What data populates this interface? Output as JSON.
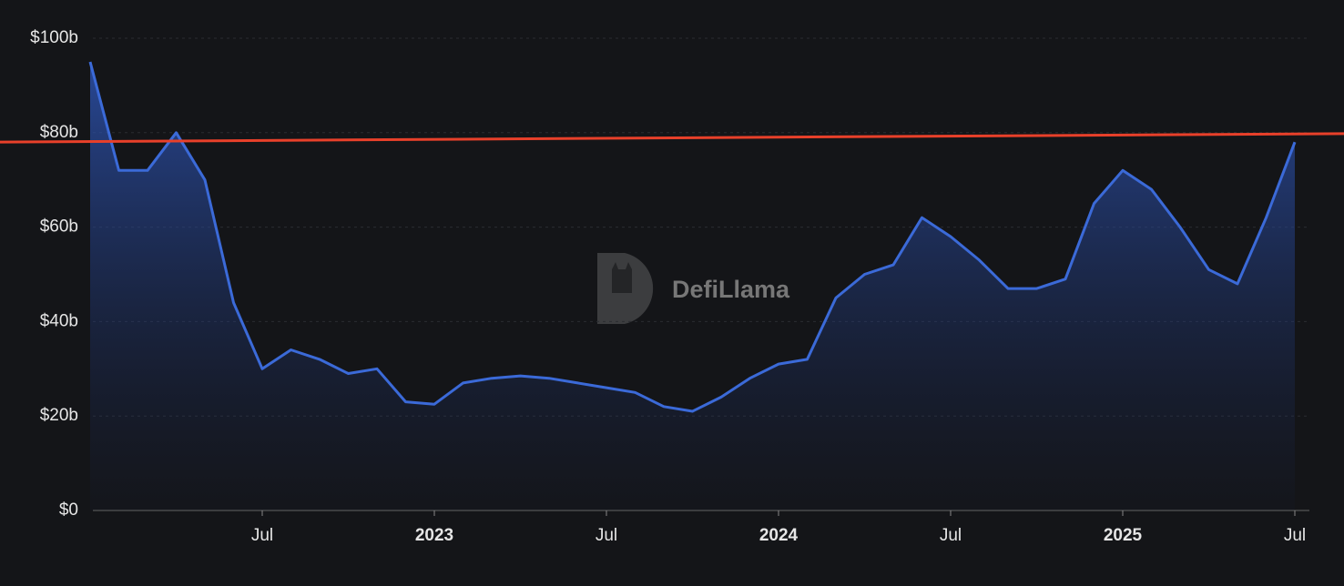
{
  "chart_data": {
    "type": "area",
    "watermark": "DefiLlama",
    "x": [
      "2022-01",
      "2022-02",
      "2022-03",
      "2022-04",
      "2022-05",
      "2022-06",
      "2022-07",
      "2022-08",
      "2022-09",
      "2022-10",
      "2022-11",
      "2022-12",
      "2023-01",
      "2023-02",
      "2023-03",
      "2023-04",
      "2023-05",
      "2023-06",
      "2023-07",
      "2023-08",
      "2023-09",
      "2023-10",
      "2023-11",
      "2023-12",
      "2024-01",
      "2024-02",
      "2024-03",
      "2024-04",
      "2024-05",
      "2024-06",
      "2024-07",
      "2024-08",
      "2024-09",
      "2024-10",
      "2024-11",
      "2024-12",
      "2025-01",
      "2025-02",
      "2025-03",
      "2025-04",
      "2025-05",
      "2025-06",
      "2025-07"
    ],
    "series": [
      {
        "color": "#3b6ad8",
        "values": [
          95,
          72,
          72,
          80,
          70,
          44,
          30,
          34,
          32,
          29,
          30,
          23,
          22.5,
          27,
          28,
          28.5,
          28,
          27,
          26,
          25,
          22,
          21,
          24,
          28,
          31,
          32,
          45,
          50,
          52,
          62,
          58,
          53,
          47,
          47,
          49,
          65,
          72,
          68,
          60,
          51,
          48,
          62,
          78
        ]
      }
    ],
    "reference_line": {
      "color": "#e8402a",
      "values": [
        78,
        79.8
      ]
    },
    "xlim": [
      "2022-01",
      "2025-07"
    ],
    "xticks": [
      {
        "value": "2022-07",
        "label": "Jul"
      },
      {
        "value": "2023-01",
        "label": "2023"
      },
      {
        "value": "2023-07",
        "label": "Jul"
      },
      {
        "value": "2024-01",
        "label": "2024"
      },
      {
        "value": "2024-07",
        "label": "Jul"
      },
      {
        "value": "2025-01",
        "label": "2025"
      },
      {
        "value": "2025-07",
        "label": "Jul"
      }
    ],
    "ylim": [
      0,
      100
    ],
    "yticks": [
      {
        "value": 0,
        "label": "$0"
      },
      {
        "value": 20,
        "label": "$20b"
      },
      {
        "value": 40,
        "label": "$40b"
      },
      {
        "value": 60,
        "label": "$60b"
      },
      {
        "value": 80,
        "label": "$80b"
      },
      {
        "value": 100,
        "label": "$100b"
      }
    ],
    "grid": true
  }
}
